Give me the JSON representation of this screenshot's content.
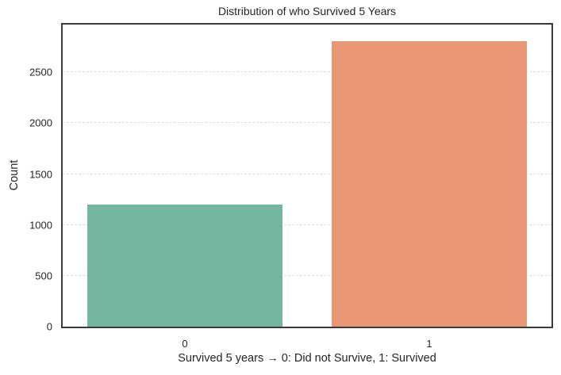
{
  "chart_data": {
    "type": "bar",
    "title": "Distribution of who Survived 5 Years",
    "xlabel": "Survived 5 years → 0: Did not Survive,  1: Survived",
    "ylabel": "Count",
    "categories": [
      "0",
      "1"
    ],
    "values": [
      1200,
      2810
    ],
    "colors": [
      "#73b5a1",
      "#e99674"
    ],
    "ylim": [
      0,
      2970
    ],
    "yticks": [
      0,
      500,
      1000,
      1500,
      2000,
      2500
    ],
    "ytick_labels": [
      "0",
      "500",
      "1000",
      "1500",
      "2000",
      "2500"
    ],
    "grid": {
      "y": true,
      "style": "dashed",
      "color": "#dcdcdc"
    },
    "legend": null
  }
}
